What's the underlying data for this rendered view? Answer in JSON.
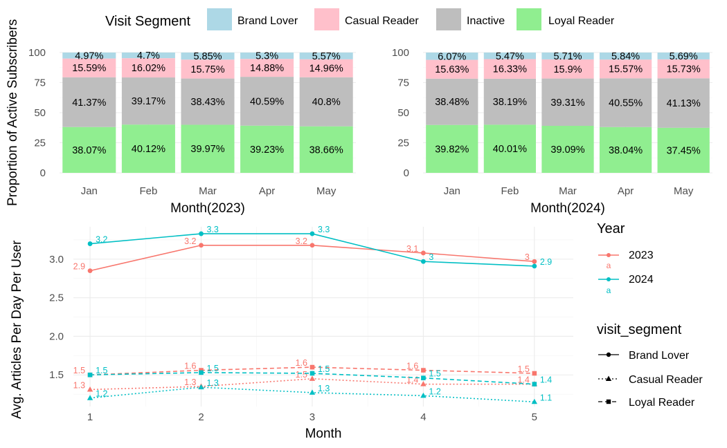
{
  "segment_legend": {
    "title": "Visit Segment",
    "items": [
      {
        "label": "Brand Lover",
        "color": "#ADD8E6"
      },
      {
        "label": "Casual Reader",
        "color": "#FFC0CB"
      },
      {
        "label": "Inactive",
        "color": "#BEBEBE"
      },
      {
        "label": "Loyal Reader",
        "color": "#90EE90"
      }
    ]
  },
  "shared_ylabel_top": "Proportion of Active Subscribers",
  "year_legend": {
    "title": "Year",
    "items": [
      {
        "label": "2023",
        "color": "#F8766D",
        "key_glyph": "a"
      },
      {
        "label": "2024",
        "color": "#00BFC4",
        "key_glyph": "a"
      }
    ]
  },
  "segment_shape_legend": {
    "title": "visit_segment",
    "items": [
      {
        "label": "Brand Lover",
        "shape": "circle",
        "linetype": "solid"
      },
      {
        "label": "Casual Reader",
        "shape": "triangle",
        "linetype": "dotted"
      },
      {
        "label": "Loyal Reader",
        "shape": "square",
        "linetype": "dashed"
      }
    ]
  },
  "chart_data": [
    {
      "type": "bar",
      "stacked": true,
      "xlabel": "Month(2023)",
      "ylabel": "Proportion of Active Subscribers",
      "ylim": [
        0,
        100
      ],
      "yticks": [
        0,
        25,
        50,
        75,
        100
      ],
      "categories": [
        "Jan",
        "Feb",
        "Mar",
        "Apr",
        "May"
      ],
      "series": [
        {
          "name": "Loyal Reader",
          "values": [
            38.07,
            40.12,
            39.97,
            39.23,
            38.66
          ],
          "labels": [
            "38.07%",
            "40.12%",
            "39.97%",
            "39.23%",
            "38.66%"
          ]
        },
        {
          "name": "Inactive",
          "values": [
            41.37,
            39.17,
            38.43,
            40.59,
            40.8
          ],
          "labels": [
            "41.37%",
            "39.17%",
            "38.43%",
            "40.59%",
            "40.8%"
          ]
        },
        {
          "name": "Casual Reader",
          "values": [
            15.59,
            16.02,
            15.75,
            14.88,
            14.96
          ],
          "labels": [
            "15.59%",
            "16.02%",
            "15.75%",
            "14.88%",
            "14.96%"
          ]
        },
        {
          "name": "Brand Lover",
          "values": [
            4.97,
            4.7,
            5.85,
            5.3,
            5.57
          ],
          "labels": [
            "4.97%",
            "4.7%",
            "5.85%",
            "5.3%",
            "5.57%"
          ]
        }
      ]
    },
    {
      "type": "bar",
      "stacked": true,
      "xlabel": "Month(2024)",
      "ylim": [
        0,
        100
      ],
      "yticks": [
        0,
        25,
        50,
        75,
        100
      ],
      "categories": [
        "Jan",
        "Feb",
        "Mar",
        "Apr",
        "May"
      ],
      "series": [
        {
          "name": "Loyal Reader",
          "values": [
            39.82,
            40.01,
            39.09,
            38.04,
            37.45
          ],
          "labels": [
            "39.82%",
            "40.01%",
            "39.09%",
            "38.04%",
            "37.45%"
          ]
        },
        {
          "name": "Inactive",
          "values": [
            38.48,
            38.19,
            39.31,
            40.55,
            41.13
          ],
          "labels": [
            "38.48%",
            "38.19%",
            "39.31%",
            "40.55%",
            "41.13%"
          ]
        },
        {
          "name": "Casual Reader",
          "values": [
            15.63,
            16.33,
            15.9,
            15.57,
            15.73
          ],
          "labels": [
            "15.63%",
            "16.33%",
            "15.9%",
            "15.57%",
            "15.73%"
          ]
        },
        {
          "name": "Brand Lover",
          "values": [
            6.07,
            5.47,
            5.71,
            5.84,
            5.69
          ],
          "labels": [
            "6.07%",
            "5.47%",
            "5.71%",
            "5.84%",
            "5.69%"
          ]
        }
      ]
    },
    {
      "type": "line",
      "xlabel": "Month",
      "ylabel": "Avg. Articles Per Day Per User",
      "x": [
        1,
        2,
        3,
        4,
        5
      ],
      "xticks": [
        1,
        2,
        3,
        4,
        5
      ],
      "yticks": [
        1.5,
        2.0,
        2.5,
        3.0
      ],
      "ytick_labels": [
        "1.5",
        "2.0",
        "2.5",
        "3.0"
      ],
      "xlim": [
        0.85,
        5.35
      ],
      "ylim": [
        1.09,
        3.42
      ],
      "series": [
        {
          "year": "2023",
          "segment": "Brand Lover",
          "values": [
            2.85,
            3.18,
            3.18,
            3.08,
            2.97
          ],
          "labels": [
            "2.9",
            "3.2",
            "3.2",
            "3.1",
            "3"
          ]
        },
        {
          "year": "2024",
          "segment": "Brand Lover",
          "values": [
            3.2,
            3.33,
            3.33,
            2.97,
            2.91
          ],
          "labels": [
            "3.2",
            "3.3",
            "3.3",
            "3",
            "2.9"
          ]
        },
        {
          "year": "2023",
          "segment": "Casual Reader",
          "values": [
            1.31,
            1.35,
            1.45,
            1.38,
            1.38
          ],
          "labels": [
            "1.3",
            "1.3",
            "1.5",
            "1.4",
            "1.4"
          ]
        },
        {
          "year": "2024",
          "segment": "Casual Reader",
          "values": [
            1.2,
            1.34,
            1.27,
            1.23,
            1.15
          ],
          "labels": [
            "1.2",
            "1.3",
            "1.3",
            "1.2",
            "1.1"
          ]
        },
        {
          "year": "2023",
          "segment": "Loyal Reader",
          "values": [
            1.5,
            1.56,
            1.6,
            1.56,
            1.52
          ],
          "labels": [
            "1.5",
            "1.6",
            "1.6",
            "1.6",
            "1.5"
          ]
        },
        {
          "year": "2024",
          "segment": "Loyal Reader",
          "values": [
            1.5,
            1.53,
            1.52,
            1.46,
            1.38
          ],
          "labels": [
            "1.5",
            "1.5",
            "1.5",
            "1.5",
            "1.4"
          ]
        }
      ]
    }
  ]
}
